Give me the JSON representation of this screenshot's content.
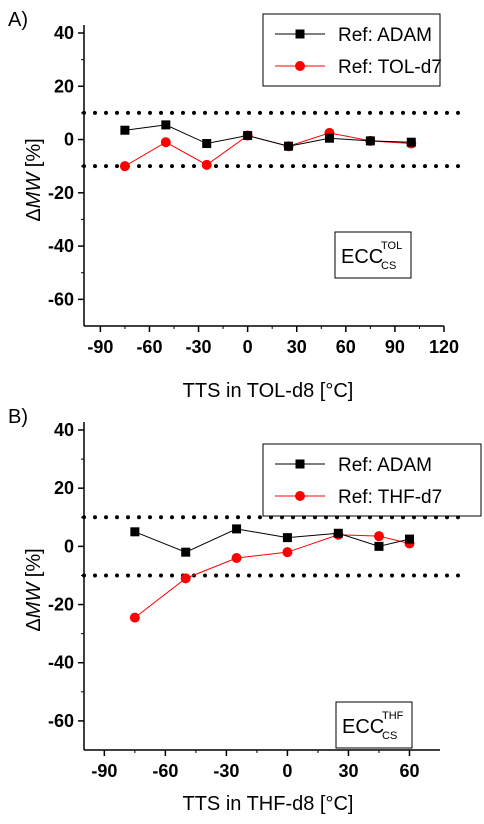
{
  "chart_data": [
    {
      "type": "line",
      "panel_label": "A)",
      "xlabel": "TTS in TOL-d8 [°C]",
      "ylabel_delta": "Δ",
      "ylabel_var": "MW",
      "ylabel_unit": " [%]",
      "xlim": [
        -100,
        120
      ],
      "ylim": [
        -70,
        40
      ],
      "xticks": [
        -90,
        -60,
        -30,
        0,
        30,
        60,
        90,
        120
      ],
      "yticks": [
        40,
        20,
        0,
        -20,
        -40,
        -60
      ],
      "reference_lines": [
        10,
        -10
      ],
      "legend_position": "top-right",
      "annotation": {
        "main": "ECC",
        "sup": "TOL",
        "sub": "CS"
      },
      "series": [
        {
          "name": "Ref: ADAM",
          "marker": "square",
          "color": "#000000",
          "x": [
            -75,
            -50,
            -25,
            0,
            25,
            50,
            75,
            100
          ],
          "y": [
            3.5,
            5.5,
            -1.5,
            1.5,
            -2.5,
            0.5,
            -0.5,
            -1.0
          ]
        },
        {
          "name": "Ref: TOL-d7",
          "marker": "circle",
          "color": "#ff0000",
          "x": [
            -75,
            -50,
            -25,
            0,
            25,
            50,
            75,
            100
          ],
          "y": [
            -10.0,
            -1.0,
            -9.5,
            1.5,
            -2.5,
            2.5,
            -0.5,
            -1.5
          ]
        }
      ]
    },
    {
      "type": "line",
      "panel_label": "B)",
      "xlabel": "TTS in THF-d8 [°C]",
      "ylabel_delta": "Δ",
      "ylabel_var": "MW",
      "ylabel_unit": " [%]",
      "xlim": [
        -100,
        75
      ],
      "ylim": [
        -70,
        40
      ],
      "xticks": [
        -90,
        -60,
        -30,
        0,
        30,
        60
      ],
      "yticks": [
        40,
        20,
        0,
        -20,
        -40,
        -60
      ],
      "reference_lines": [
        10,
        -10
      ],
      "legend_position": "top-right",
      "annotation": {
        "main": "ECC",
        "sup": "THF",
        "sub": "CS"
      },
      "series": [
        {
          "name": "Ref: ADAM",
          "marker": "square",
          "color": "#000000",
          "x": [
            -75,
            -50,
            -25,
            0,
            25,
            45,
            60
          ],
          "y": [
            5.0,
            -2.0,
            6.0,
            3.0,
            4.5,
            0.0,
            2.5
          ]
        },
        {
          "name": "Ref: THF-d7",
          "marker": "circle",
          "color": "#ff0000",
          "x": [
            -75,
            -50,
            -25,
            0,
            25,
            45,
            60
          ],
          "y": [
            -24.5,
            -11.0,
            -4.0,
            -2.0,
            4.0,
            3.5,
            1.0
          ]
        }
      ]
    }
  ]
}
